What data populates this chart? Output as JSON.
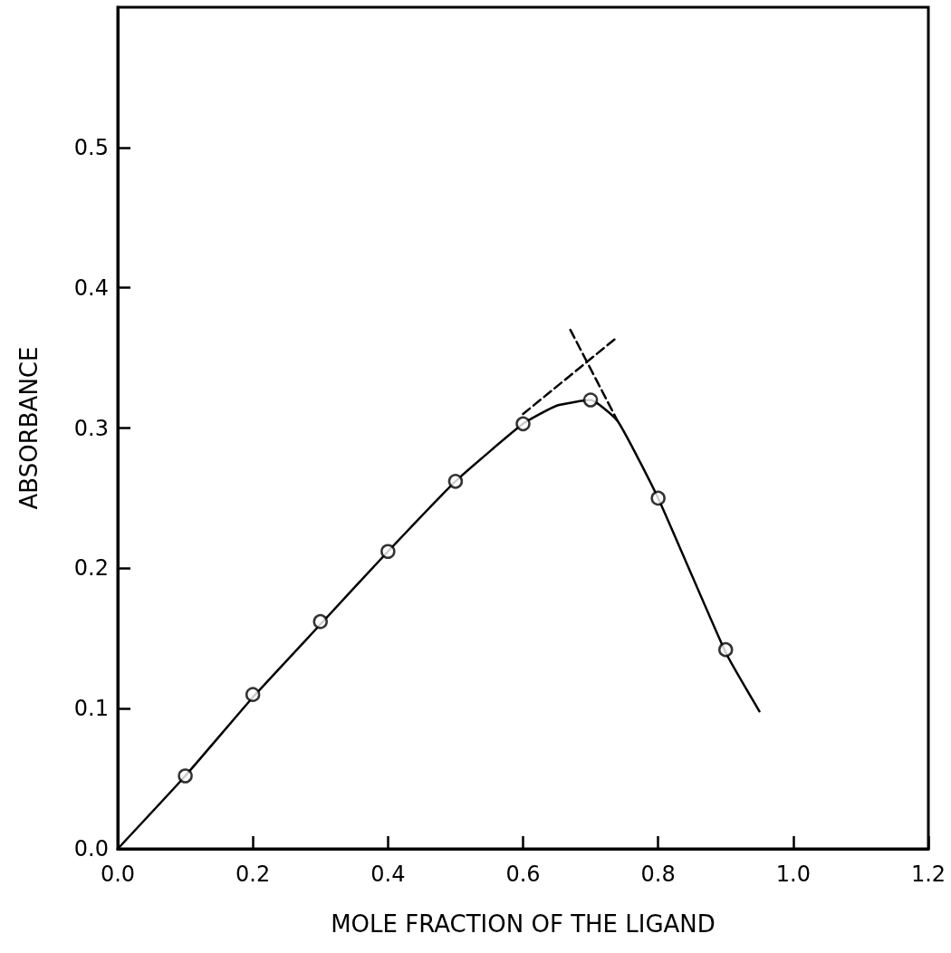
{
  "chart_data": {
    "type": "line",
    "xlabel": "MOLE FRACTION OF THE LIGAND",
    "ylabel": "ABSORBANCE",
    "xlim": [
      0,
      1.2
    ],
    "xticks": [
      {
        "value": 0,
        "label": "0.0"
      },
      0.2,
      0.4,
      0.6,
      0.8,
      {
        "value": 1.0,
        "label": "1.0"
      },
      1.2
    ],
    "ylim": [
      0,
      0.6
    ],
    "yticks": [
      {
        "value": 0,
        "label": "0.0"
      },
      0.1,
      0.2,
      0.3,
      0.4,
      0.5
    ],
    "grid": false,
    "series": [
      {
        "color": "#000000",
        "marker": "none",
        "line_style": "solid",
        "x": [
          0,
          0.1,
          0.2,
          0.3,
          0.4,
          0.5,
          0.6,
          0.65,
          0.7,
          0.74,
          0.8,
          0.9,
          0.95
        ],
        "values": [
          0,
          0.052,
          0.108,
          0.16,
          0.212,
          0.262,
          0.303,
          0.316,
          0.32,
          0.305,
          0.25,
          0.14,
          0.098
        ]
      },
      {
        "type": "scatter",
        "color": "#000000",
        "marker": "circle",
        "x": [
          0.1,
          0.2,
          0.3,
          0.4,
          0.5,
          0.6,
          0.7,
          0.8,
          0.9
        ],
        "values": [
          0.052,
          0.11,
          0.162,
          0.212,
          0.262,
          0.303,
          0.32,
          0.25,
          0.142
        ]
      },
      {
        "color": "#000000",
        "marker": "none",
        "line_style": "dashed",
        "x": [
          0.6,
          0.74
        ],
        "values": [
          0.31,
          0.365
        ]
      },
      {
        "color": "#000000",
        "marker": "none",
        "line_style": "dashed",
        "x": [
          0.67,
          0.74
        ],
        "values": [
          0.37,
          0.305
        ]
      }
    ]
  }
}
